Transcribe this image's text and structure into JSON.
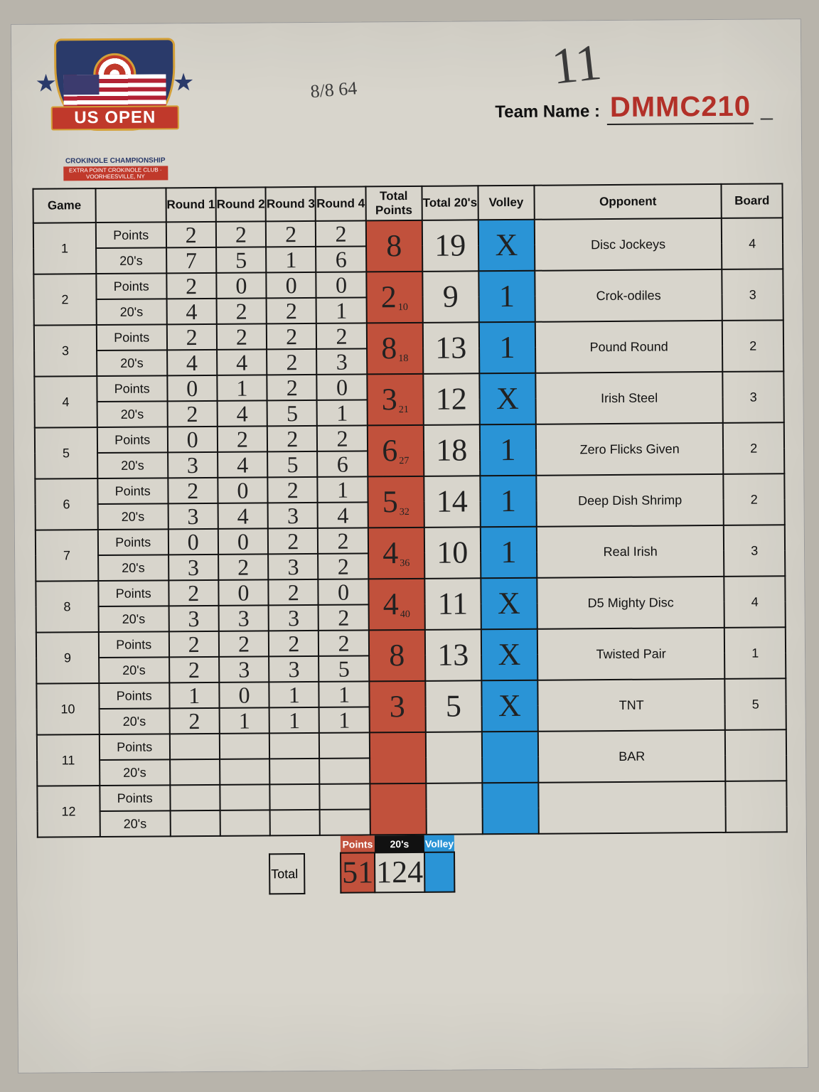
{
  "header": {
    "logo": {
      "title": "US OPEN",
      "subtitle1": "CROKINOLE CHAMPIONSHIP",
      "subtitle2": "EXTRA POINT CROKINOLE CLUB · VOORHEESVILLE, NY"
    },
    "hand_note_a": "8/8  64",
    "hand_note_b": "11",
    "team_name_label": "Team Name :",
    "team_name_value": "DMMC210"
  },
  "columns": {
    "game": "Game",
    "round1": "Round 1",
    "round2": "Round 2",
    "round3": "Round 3",
    "round4": "Round 4",
    "total_points": "Total Points",
    "total_20s": "Total 20's",
    "volley": "Volley",
    "opponent": "Opponent",
    "board": "Board"
  },
  "metric_labels": {
    "points": "Points",
    "twenties": "20's"
  },
  "games": [
    {
      "num": "1",
      "points": [
        "2",
        "2",
        "2",
        "2"
      ],
      "twenties": [
        "7",
        "5",
        "1",
        "6"
      ],
      "total_points": "8",
      "tp_sub": "",
      "total_20s": "19",
      "volley": "X",
      "opponent": "Disc Jockeys",
      "board": "4"
    },
    {
      "num": "2",
      "points": [
        "2",
        "0",
        "0",
        "0"
      ],
      "twenties": [
        "4",
        "2",
        "2",
        "1"
      ],
      "total_points": "2",
      "tp_sub": "10",
      "total_20s": "9",
      "volley": "1",
      "opponent": "Crok-odiles",
      "board": "3"
    },
    {
      "num": "3",
      "points": [
        "2",
        "2",
        "2",
        "2"
      ],
      "twenties": [
        "4",
        "4",
        "2",
        "3"
      ],
      "total_points": "8",
      "tp_sub": "18",
      "total_20s": "13",
      "volley": "1",
      "opponent": "Pound Round",
      "board": "2"
    },
    {
      "num": "4",
      "points": [
        "0",
        "1",
        "2",
        "0"
      ],
      "twenties": [
        "2",
        "4",
        "5",
        "1"
      ],
      "total_points": "3",
      "tp_sub": "21",
      "total_20s": "12",
      "volley": "X",
      "opponent": "Irish Steel",
      "board": "3"
    },
    {
      "num": "5",
      "points": [
        "0",
        "2",
        "2",
        "2"
      ],
      "twenties": [
        "3",
        "4",
        "5",
        "6"
      ],
      "total_points": "6",
      "tp_sub": "27",
      "total_20s": "18",
      "volley": "1",
      "opponent": "Zero Flicks Given",
      "board": "2"
    },
    {
      "num": "6",
      "points": [
        "2",
        "0",
        "2",
        "1"
      ],
      "twenties": [
        "3",
        "4",
        "3",
        "4"
      ],
      "total_points": "5",
      "tp_sub": "32",
      "total_20s": "14",
      "volley": "1",
      "opponent": "Deep Dish Shrimp",
      "board": "2"
    },
    {
      "num": "7",
      "points": [
        "0",
        "0",
        "2",
        "2"
      ],
      "twenties": [
        "3",
        "2",
        "3",
        "2"
      ],
      "total_points": "4",
      "tp_sub": "36",
      "total_20s": "10",
      "volley": "1",
      "opponent": "Real Irish",
      "board": "3"
    },
    {
      "num": "8",
      "points": [
        "2",
        "0",
        "2",
        "0"
      ],
      "twenties": [
        "3",
        "3",
        "3",
        "2"
      ],
      "total_points": "4",
      "tp_sub": "40",
      "total_20s": "11",
      "volley": "X",
      "opponent": "D5 Mighty Disc",
      "board": "4"
    },
    {
      "num": "9",
      "points": [
        "2",
        "2",
        "2",
        "2"
      ],
      "twenties": [
        "2",
        "3",
        "3",
        "5"
      ],
      "total_points": "8",
      "tp_sub": "",
      "total_20s": "13",
      "volley": "X",
      "opponent": "Twisted Pair",
      "board": "1"
    },
    {
      "num": "10",
      "points": [
        "1",
        "0",
        "1",
        "1"
      ],
      "twenties": [
        "2",
        "1",
        "1",
        "1"
      ],
      "total_points": "3",
      "tp_sub": "",
      "total_20s": "5",
      "volley": "X",
      "opponent": "TNT",
      "board": "5"
    },
    {
      "num": "11",
      "points": [
        "",
        "",
        "",
        ""
      ],
      "twenties": [
        "",
        "",
        "",
        ""
      ],
      "total_points": "",
      "tp_sub": "",
      "total_20s": "",
      "volley": "",
      "opponent": "BAR",
      "board": ""
    },
    {
      "num": "12",
      "points": [
        "",
        "",
        "",
        ""
      ],
      "twenties": [
        "",
        "",
        "",
        ""
      ],
      "total_points": "",
      "tp_sub": "",
      "total_20s": "",
      "volley": "",
      "opponent": "",
      "board": ""
    }
  ],
  "footer": {
    "total_label": "Total",
    "points_label": "Points",
    "twenties_label": "20's",
    "volley_label": "Volley",
    "total_points": "51",
    "total_20s": "124",
    "total_volley": ""
  },
  "style": {
    "paper_bg": "#d8d5cc",
    "line": "#111111",
    "tp_bg": "#c1513c",
    "volley_bg": "#2a94d6",
    "team_color": "#b23028",
    "hand_color": "#222222"
  }
}
